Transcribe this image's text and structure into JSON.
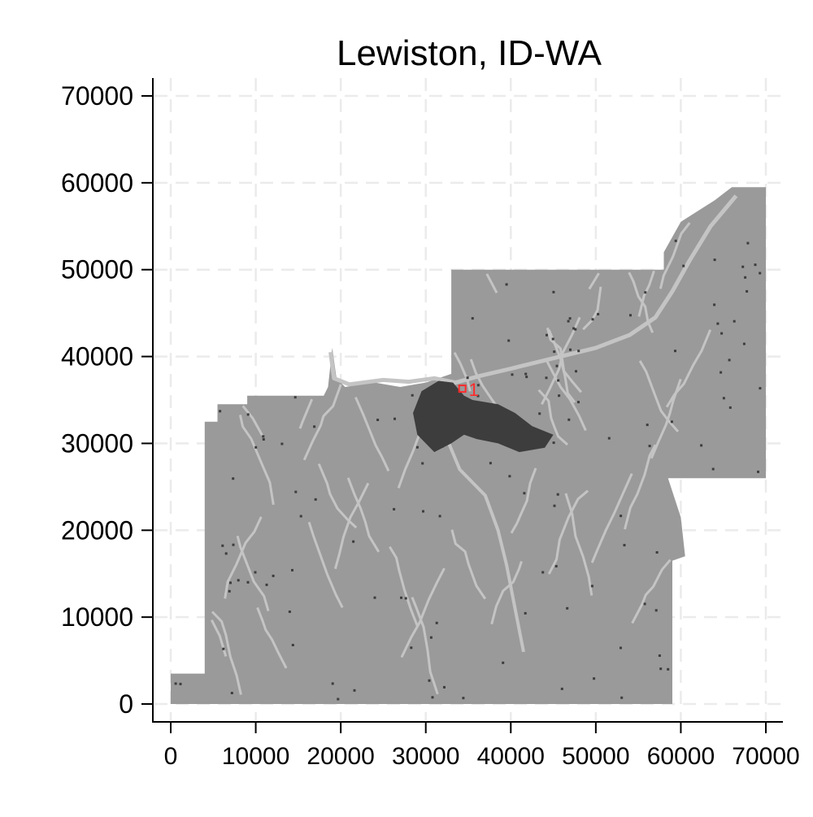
{
  "title": "Lewiston, ID-WA",
  "colors": {
    "background": "#ffffff",
    "grid": "#ebebeb",
    "axis": "#000000",
    "land": "#9a9a9a",
    "urban": "#3d3d3d",
    "streams": "#c4c4c4",
    "marker": "#ff2a2a"
  },
  "chart_data": {
    "type": "scatter",
    "title": "Lewiston, ID-WA",
    "xlabel": "",
    "ylabel": "",
    "xlim": [
      0,
      70000
    ],
    "ylim": [
      0,
      70000
    ],
    "x_ticks": [
      0,
      10000,
      20000,
      30000,
      40000,
      50000,
      60000,
      70000
    ],
    "y_ticks": [
      0,
      10000,
      20000,
      30000,
      40000,
      50000,
      60000,
      70000
    ],
    "grid": true,
    "region_outline": [
      [
        0,
        0
      ],
      [
        59000,
        0
      ],
      [
        59000,
        16500
      ],
      [
        60500,
        17000
      ],
      [
        60000,
        21500
      ],
      [
        58500,
        26000
      ],
      [
        70000,
        26000
      ],
      [
        70000,
        59500
      ],
      [
        66000,
        59500
      ],
      [
        64000,
        58000
      ],
      [
        60000,
        55500
      ],
      [
        58000,
        52000
      ],
      [
        58000,
        50000
      ],
      [
        33000,
        50000
      ],
      [
        33000,
        38000
      ],
      [
        30000,
        37000
      ],
      [
        27000,
        36500
      ],
      [
        24000,
        37000
      ],
      [
        20500,
        36500
      ],
      [
        19500,
        37500
      ],
      [
        19000,
        41000
      ],
      [
        18500,
        36500
      ],
      [
        18000,
        35500
      ],
      [
        9000,
        35500
      ],
      [
        9000,
        34500
      ],
      [
        5500,
        34500
      ],
      [
        5500,
        32500
      ],
      [
        4000,
        32500
      ],
      [
        4000,
        3500
      ],
      [
        0,
        3500
      ]
    ],
    "urban_area": [
      [
        29000,
        31000
      ],
      [
        28500,
        33500
      ],
      [
        29500,
        36000
      ],
      [
        31500,
        37200
      ],
      [
        33200,
        37000
      ],
      [
        34500,
        35500
      ],
      [
        35500,
        35000
      ],
      [
        38500,
        34500
      ],
      [
        40500,
        33500
      ],
      [
        42500,
        32000
      ],
      [
        45000,
        31000
      ],
      [
        44000,
        29500
      ],
      [
        41000,
        29000
      ],
      [
        38500,
        30000
      ],
      [
        36000,
        30500
      ],
      [
        34500,
        31000
      ],
      [
        33000,
        30000
      ],
      [
        31000,
        29000
      ]
    ],
    "highlighted_point": {
      "x": 34300,
      "y": 36300,
      "label": "1"
    }
  }
}
